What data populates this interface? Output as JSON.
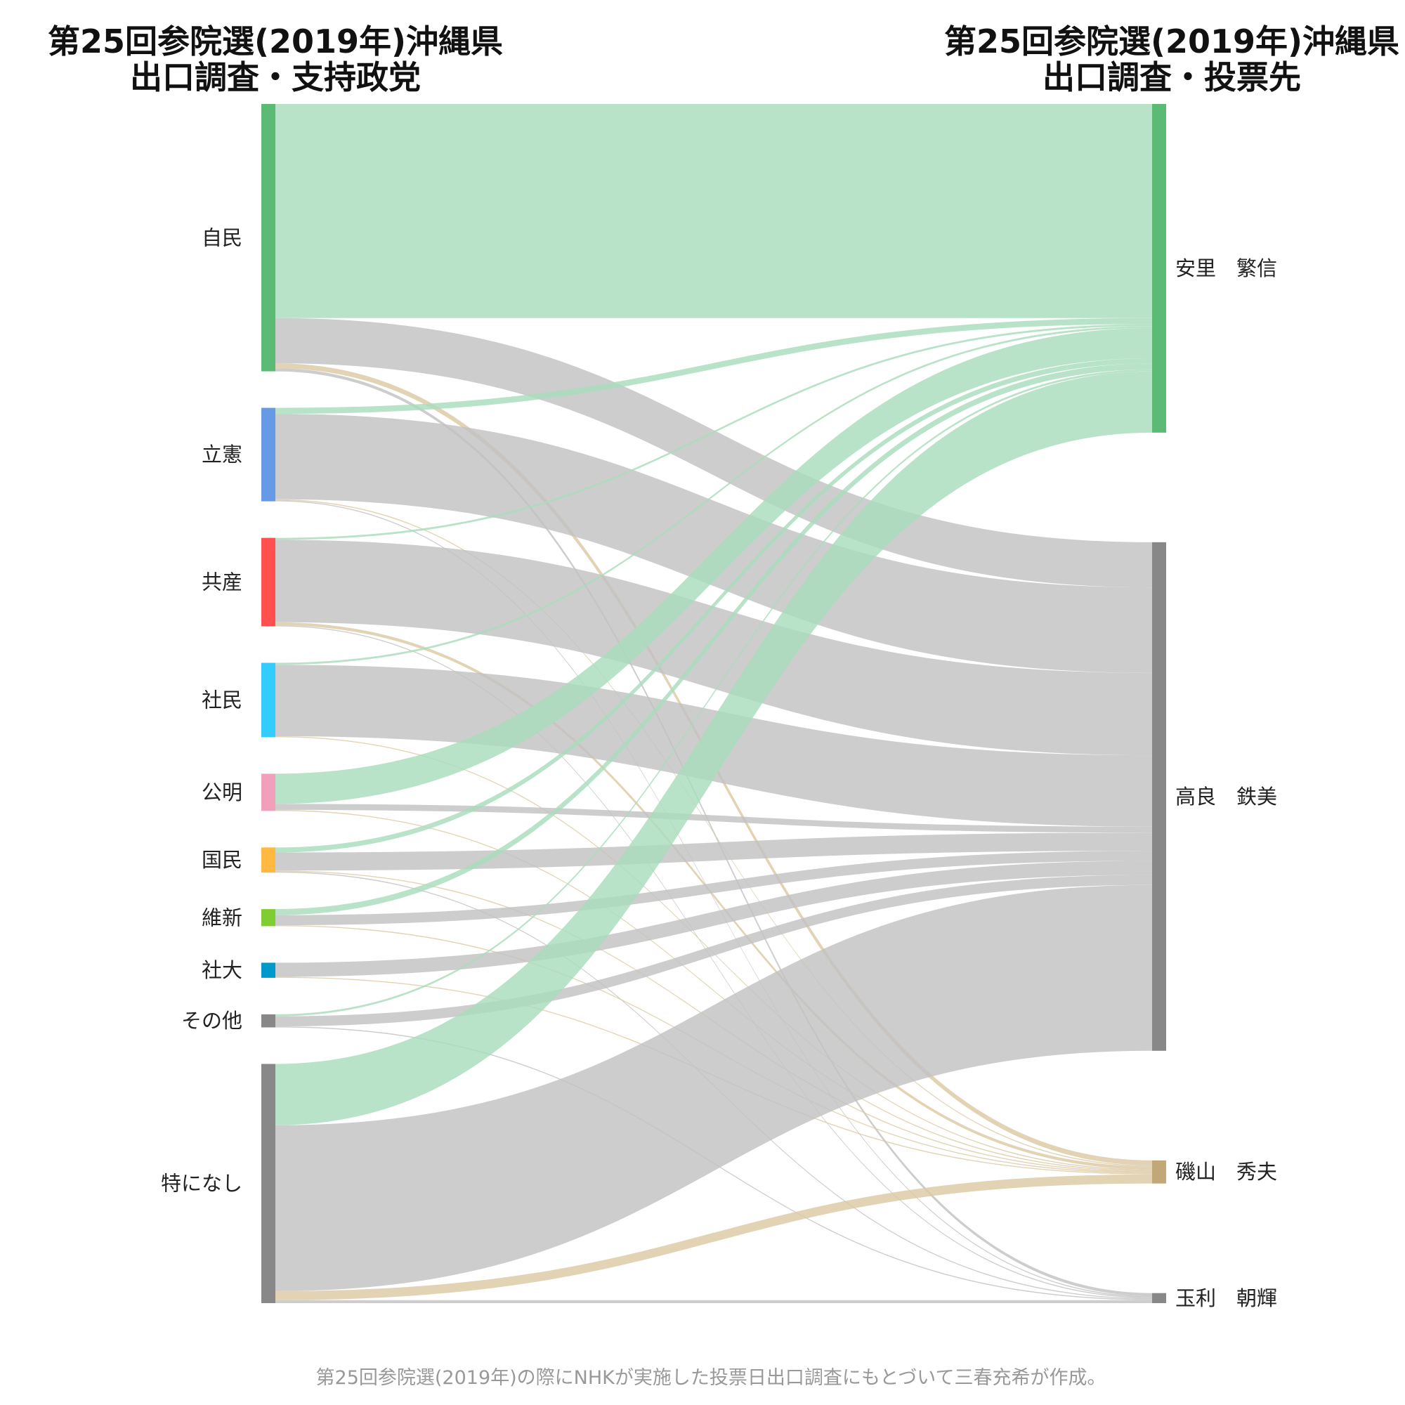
{
  "left_title": [
    "第25回参院選(2019年)沖縄県",
    "出口調査・支持政党"
  ],
  "right_title": [
    "第25回参院選(2019年)沖縄県",
    "出口調査・投票先"
  ],
  "footnote": "第25回参院選(2019年)の際にNHKが実施した投票日出口調査にもとづいて三春充希が作成。",
  "chart_data": {
    "type": "sankey",
    "left_title": "第25回参院選(2019年)沖縄県 出口調査・支持政党",
    "right_title": "第25回参院選(2019年)沖縄県 出口調査・投票先",
    "value_unit": "relative share of exit-poll respondents (estimated from band widths)",
    "sources": [
      {
        "name": "自民",
        "color": "#5bbb74"
      },
      {
        "name": "立憲",
        "color": "#6699e6"
      },
      {
        "name": "共産",
        "color": "#ff4f4f"
      },
      {
        "name": "社民",
        "color": "#33ccff"
      },
      {
        "name": "公明",
        "color": "#f29fbc"
      },
      {
        "name": "国民",
        "color": "#ffb940"
      },
      {
        "name": "維新",
        "color": "#80cc33"
      },
      {
        "name": "社大",
        "color": "#0099cc"
      },
      {
        "name": "その他",
        "color": "#888888"
      },
      {
        "name": "特になし",
        "color": "#888888"
      }
    ],
    "targets": [
      {
        "name": "安里　繁信",
        "color": "#5bbb74",
        "flow_color": "#a9ddbc"
      },
      {
        "name": "高良　鉄美",
        "color": "#888888",
        "flow_color": "#c2c2c2"
      },
      {
        "name": "磯山　秀夫",
        "color": "#c2a878",
        "flow_color": "#dcc9a4"
      },
      {
        "name": "玉利　朝輝",
        "color": "#888888",
        "flow_color": "#c2c2c2"
      }
    ],
    "flows": [
      {
        "source": "自民",
        "target": "安里　繁信",
        "value": 21.3
      },
      {
        "source": "自民",
        "target": "高良　鉄美",
        "value": 4.5
      },
      {
        "source": "自民",
        "target": "磯山　秀夫",
        "value": 0.5
      },
      {
        "source": "自民",
        "target": "玉利　朝輝",
        "value": 0.3
      },
      {
        "source": "立憲",
        "target": "安里　繁信",
        "value": 0.6
      },
      {
        "source": "立憲",
        "target": "高良　鉄美",
        "value": 8.5
      },
      {
        "source": "立憲",
        "target": "磯山　秀夫",
        "value": 0.1
      },
      {
        "source": "立憲",
        "target": "玉利　朝輝",
        "value": 0.1
      },
      {
        "source": "共産",
        "target": "安里　繁信",
        "value": 0.2
      },
      {
        "source": "共産",
        "target": "高良　鉄美",
        "value": 8.2
      },
      {
        "source": "共産",
        "target": "磯山　秀夫",
        "value": 0.3
      },
      {
        "source": "共産",
        "target": "玉利　朝輝",
        "value": 0.1
      },
      {
        "source": "社民",
        "target": "安里　繁信",
        "value": 0.2
      },
      {
        "source": "社民",
        "target": "高良　鉄美",
        "value": 7.1
      },
      {
        "source": "社民",
        "target": "磯山　秀夫",
        "value": 0.1
      },
      {
        "source": "公明",
        "target": "安里　繁信",
        "value": 3.0
      },
      {
        "source": "公明",
        "target": "高良　鉄美",
        "value": 0.6
      },
      {
        "source": "公明",
        "target": "磯山　秀夫",
        "value": 0.1
      },
      {
        "source": "国民",
        "target": "安里　繁信",
        "value": 0.5
      },
      {
        "source": "国民",
        "target": "高良　鉄美",
        "value": 1.8
      },
      {
        "source": "国民",
        "target": "磯山　秀夫",
        "value": 0.1
      },
      {
        "source": "国民",
        "target": "玉利　朝輝",
        "value": 0.1
      },
      {
        "source": "維新",
        "target": "安里　繁信",
        "value": 0.6
      },
      {
        "source": "維新",
        "target": "高良　鉄美",
        "value": 1.0
      },
      {
        "source": "維新",
        "target": "磯山　秀夫",
        "value": 0.1
      },
      {
        "source": "社大",
        "target": "高良　鉄美",
        "value": 1.4
      },
      {
        "source": "社大",
        "target": "磯山　秀夫",
        "value": 0.1
      },
      {
        "source": "その他",
        "target": "安里　繁信",
        "value": 0.2
      },
      {
        "source": "その他",
        "target": "高良　鉄美",
        "value": 1.0
      },
      {
        "source": "その他",
        "target": "玉利　朝輝",
        "value": 0.1
      },
      {
        "source": "特になし",
        "target": "安里　繁信",
        "value": 6.1
      },
      {
        "source": "特になし",
        "target": "高良　鉄美",
        "value": 16.5
      },
      {
        "source": "特になし",
        "target": "磯山　秀夫",
        "value": 0.9
      },
      {
        "source": "特になし",
        "target": "玉利　朝輝",
        "value": 0.3
      }
    ]
  }
}
